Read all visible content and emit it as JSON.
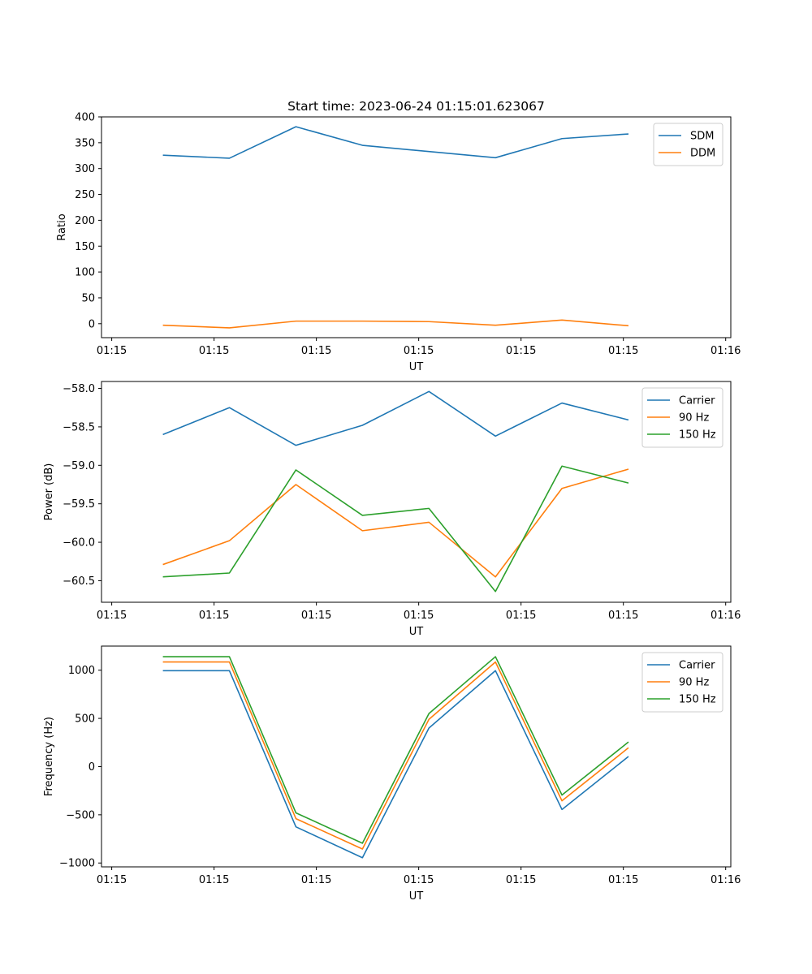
{
  "figure": {
    "title": "Start time: 2023-06-24 01:15:01.623067"
  },
  "chart_data": [
    {
      "type": "line",
      "xlabel": "UT",
      "ylabel": "Ratio",
      "x_tick_labels": [
        "01:15",
        "01:15",
        "01:15",
        "01:15",
        "01:15",
        "01:15",
        "01:16"
      ],
      "x": [
        0.5,
        1.15,
        1.8,
        2.45,
        3.1,
        3.75,
        4.4,
        5.05
      ],
      "xlim": [
        -0.1,
        6.05
      ],
      "x_ticks": [
        0,
        1,
        2,
        3,
        4,
        5,
        6
      ],
      "yticks": [
        0,
        50,
        100,
        150,
        200,
        250,
        300,
        350,
        400
      ],
      "ylim": [
        -27,
        400
      ],
      "legend": "top-right",
      "series": [
        {
          "name": "SDM",
          "color": "#1f77b4",
          "values": [
            326,
            320,
            381,
            345,
            333,
            321,
            358,
            367
          ]
        },
        {
          "name": "DDM",
          "color": "#ff7f0e",
          "values": [
            -3,
            -8,
            5,
            5,
            4,
            -3,
            7,
            -4
          ]
        }
      ]
    },
    {
      "type": "line",
      "xlabel": "UT",
      "ylabel": "Power (dB)",
      "x_tick_labels": [
        "01:15",
        "01:15",
        "01:15",
        "01:15",
        "01:15",
        "01:15",
        "01:16"
      ],
      "x": [
        0.5,
        1.15,
        1.8,
        2.45,
        3.1,
        3.75,
        4.4,
        5.05
      ],
      "xlim": [
        -0.1,
        6.05
      ],
      "x_ticks": [
        0,
        1,
        2,
        3,
        4,
        5,
        6
      ],
      "yticks": [
        -58.0,
        -58.5,
        -59.0,
        -59.5,
        -60.0,
        -60.5
      ],
      "ytick_labels": [
        "−58.0",
        "−58.5",
        "−59.0",
        "−59.5",
        "−60.0",
        "−60.5"
      ],
      "ylim": [
        -60.78,
        -57.91
      ],
      "legend": "top-right",
      "series": [
        {
          "name": "Carrier",
          "color": "#1f77b4",
          "values": [
            -58.6,
            -58.25,
            -58.74,
            -58.48,
            -58.04,
            -58.62,
            -58.19,
            -58.41
          ]
        },
        {
          "name": "90 Hz",
          "color": "#ff7f0e",
          "values": [
            -60.29,
            -59.98,
            -59.25,
            -59.85,
            -59.74,
            -60.45,
            -59.3,
            -59.05
          ]
        },
        {
          "name": "150 Hz",
          "color": "#2ca02c",
          "values": [
            -60.45,
            -60.4,
            -59.06,
            -59.65,
            -59.56,
            -60.64,
            -59.01,
            -59.23
          ]
        }
      ]
    },
    {
      "type": "line",
      "xlabel": "UT",
      "ylabel": "Frequency (Hz)",
      "x_tick_labels": [
        "01:15",
        "01:15",
        "01:15",
        "01:15",
        "01:15",
        "01:15",
        "01:16"
      ],
      "x": [
        0.5,
        1.15,
        1.8,
        2.45,
        3.1,
        3.75,
        4.4,
        5.05
      ],
      "xlim": [
        -0.1,
        6.05
      ],
      "x_ticks": [
        0,
        1,
        2,
        3,
        4,
        5,
        6
      ],
      "yticks": [
        1000,
        500,
        0,
        -500,
        -1000
      ],
      "ytick_labels": [
        "1000",
        "500",
        "0",
        "−500",
        "−1000"
      ],
      "ylim": [
        -1040,
        1250
      ],
      "legend": "top-right",
      "series": [
        {
          "name": "Carrier",
          "color": "#1f77b4",
          "values": [
            995,
            995,
            -625,
            -945,
            400,
            995,
            -445,
            105
          ]
        },
        {
          "name": "90 Hz",
          "color": "#ff7f0e",
          "values": [
            1085,
            1085,
            -540,
            -855,
            490,
            1085,
            -355,
            195
          ]
        },
        {
          "name": "150 Hz",
          "color": "#2ca02c",
          "values": [
            1140,
            1140,
            -480,
            -795,
            550,
            1140,
            -295,
            255
          ]
        }
      ]
    }
  ]
}
